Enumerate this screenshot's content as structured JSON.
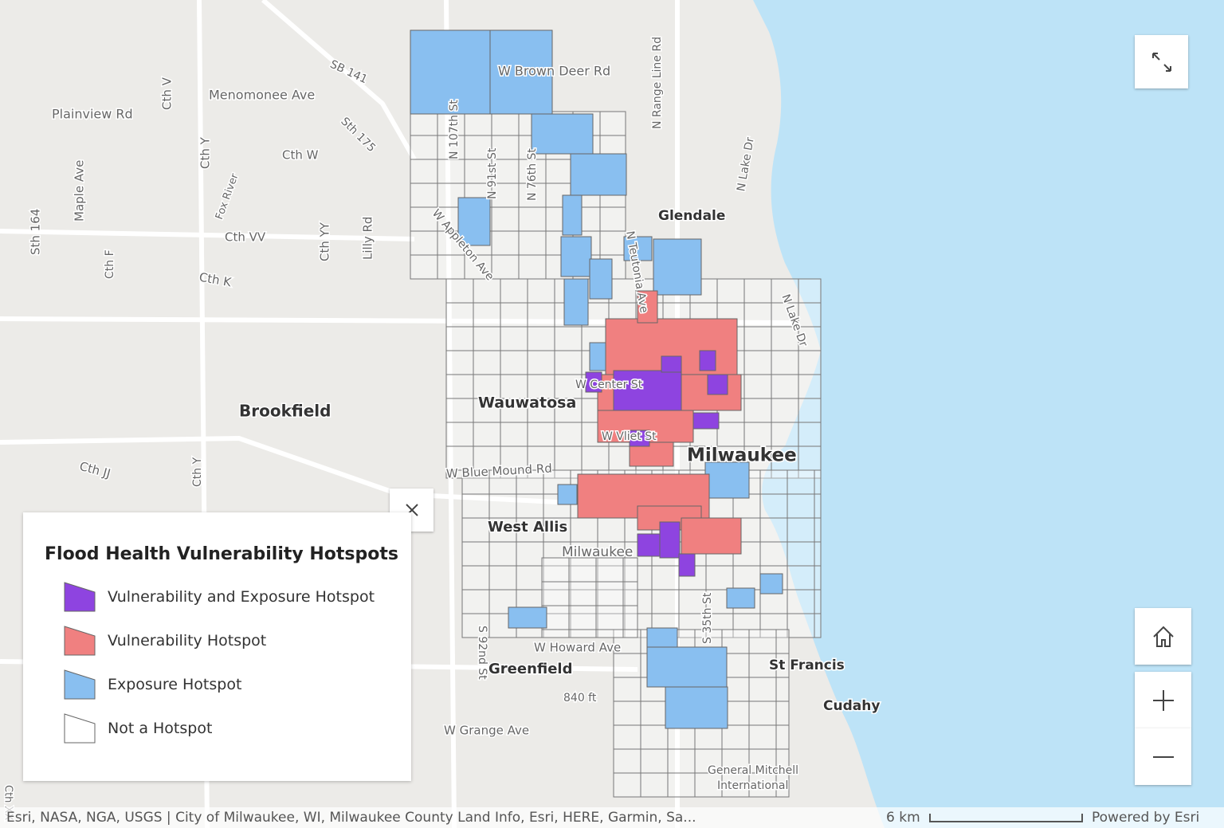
{
  "map": {
    "labels": [
      {
        "text": "Brookfield"
      },
      {
        "text": "Wauwatosa"
      },
      {
        "text": "Milwaukee"
      },
      {
        "text": "Glendale"
      },
      {
        "text": "West Allis"
      },
      {
        "text": "Greenfield"
      },
      {
        "text": "St Francis"
      },
      {
        "text": "Cudahy"
      },
      {
        "text": "Menomonee Ave"
      },
      {
        "text": "Plainview Rd"
      },
      {
        "text": "Cth W"
      },
      {
        "text": "Cth VV"
      },
      {
        "text": "Cth K"
      },
      {
        "text": "Cth JJ"
      },
      {
        "text": "W Brown Deer Rd"
      },
      {
        "text": "N Lake Dr"
      },
      {
        "text": "W Blue Mound Rd"
      },
      {
        "text": "W Howard Ave"
      },
      {
        "text": "W Grange Ave"
      },
      {
        "text": "840 ft"
      },
      {
        "text": "General Mitchell"
      },
      {
        "text": "International"
      },
      {
        "text": "Sth 164"
      },
      {
        "text": "Maple Ave"
      },
      {
        "text": "Cth V"
      },
      {
        "text": "Cth Y"
      },
      {
        "text": "Cth YY"
      },
      {
        "text": "Lilly Rd"
      },
      {
        "text": "Cth F"
      },
      {
        "text": "Fox River"
      },
      {
        "text": "SB 141"
      },
      {
        "text": "Sth 175"
      },
      {
        "text": "N 107th St"
      },
      {
        "text": "N 91st St"
      },
      {
        "text": "N 76th St"
      },
      {
        "text": "W Appleton Ave"
      },
      {
        "text": "N Range Line Rd"
      },
      {
        "text": "N Teutonia Ave"
      },
      {
        "text": "S 92nd St"
      },
      {
        "text": "W Center St"
      },
      {
        "text": "W Vliet St"
      },
      {
        "text": "Milwaukee"
      },
      {
        "text": "N Lake Dr"
      },
      {
        "text": "S 35th St"
      },
      {
        "text": "Cth Y"
      },
      {
        "text": "Cth XX"
      }
    ]
  },
  "legend": {
    "title": "Flood Health Vulnerability Hotspots",
    "items": [
      {
        "label": "Vulnerability and Exposure Hotspot",
        "color": "#8e44e0"
      },
      {
        "label": "Vulnerability Hotspot",
        "color": "#f08080"
      },
      {
        "label": "Exposure Hotspot",
        "color": "#89bff0"
      },
      {
        "label": "Not a Hotspot",
        "color": "#ffffff"
      }
    ]
  },
  "attribution": "Esri, NASA, NGA, USGS | City of Milwaukee, WI, Milwaukee County Land Info, Esri, HERE, Garmin, Sa...",
  "scale": "6 km",
  "powered_by": "Powered by Esri"
}
